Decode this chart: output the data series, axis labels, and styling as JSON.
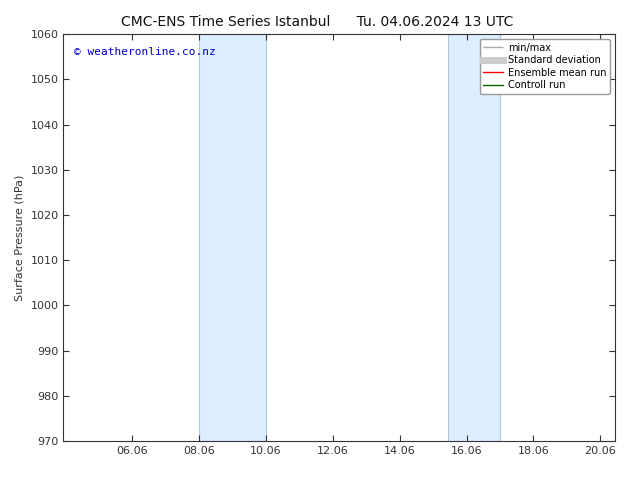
{
  "title_left": "CMC-ENS Time Series Istanbul",
  "title_right": "Tu. 04.06.2024 13 UTC",
  "ylabel": "Surface Pressure (hPa)",
  "ylim": [
    970,
    1060
  ],
  "yticks": [
    970,
    980,
    990,
    1000,
    1010,
    1020,
    1030,
    1040,
    1050,
    1060
  ],
  "xlim": [
    4.0,
    20.5
  ],
  "xticks": [
    6.06,
    8.06,
    10.06,
    12.06,
    14.06,
    16.06,
    18.06,
    20.06
  ],
  "xticklabels": [
    "06.06",
    "08.06",
    "10.06",
    "12.06",
    "14.06",
    "16.06",
    "18.06",
    "20.06"
  ],
  "shaded_regions": [
    {
      "xmin": 8.06,
      "xmax": 10.06
    },
    {
      "xmin": 15.5,
      "xmax": 17.06
    }
  ],
  "shaded_color": "#ddeeff",
  "shaded_edge_color": "#b0c8e0",
  "background_color": "#ffffff",
  "watermark_text": "© weatheronline.co.nz",
  "watermark_color": "#0000cc",
  "watermark_fontsize": 8,
  "legend_entries": [
    {
      "label": "min/max",
      "color": "#aaaaaa",
      "linewidth": 1.0
    },
    {
      "label": "Standard deviation",
      "color": "#cccccc",
      "linewidth": 5
    },
    {
      "label": "Ensemble mean run",
      "color": "#ff0000",
      "linewidth": 1.0
    },
    {
      "label": "Controll run",
      "color": "#006600",
      "linewidth": 1.0
    }
  ],
  "title_fontsize": 10,
  "ylabel_fontsize": 8,
  "tick_fontsize": 8,
  "legend_fontsize": 7,
  "spine_color": "#333333",
  "tick_color": "#333333"
}
